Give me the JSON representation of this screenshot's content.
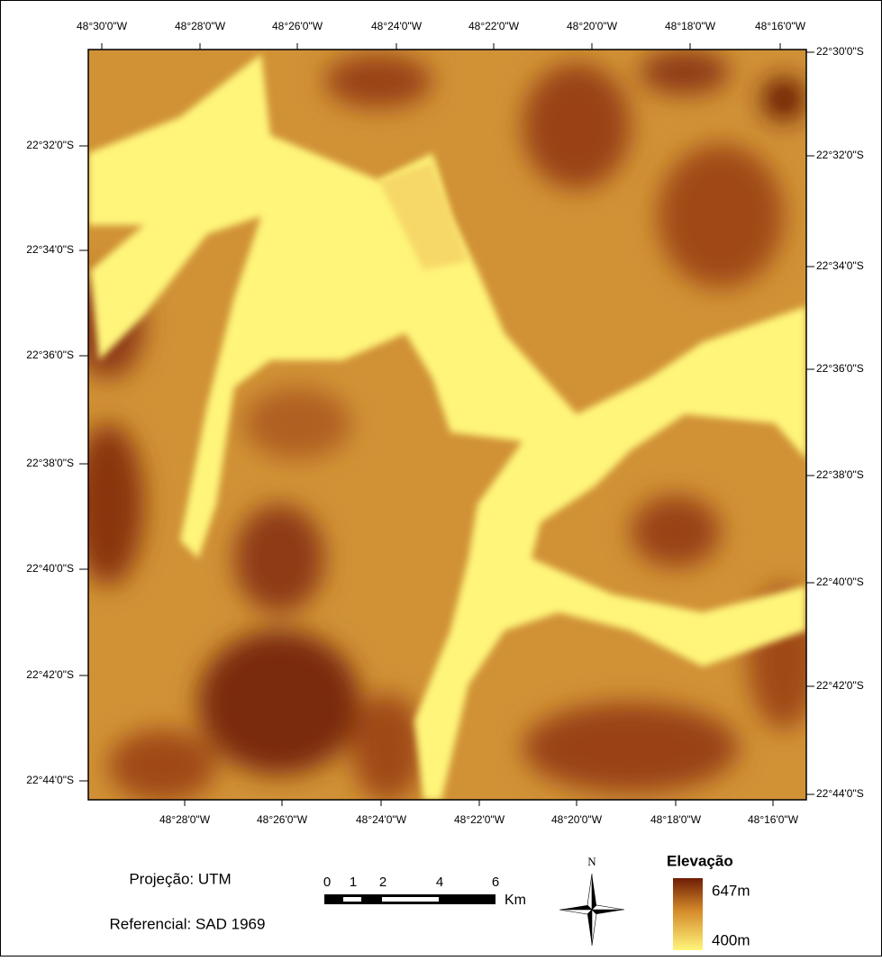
{
  "top_labels": [
    "48°30'0\"W",
    "48°28'0\"W",
    "48°26'0\"W",
    "48°24'0\"W",
    "48°22'0\"W",
    "48°20'0\"W",
    "48°18'0\"W",
    "48°16'0\"W"
  ],
  "bottom_labels": [
    "48°28'0\"W",
    "48°26'0\"W",
    "48°24'0\"W",
    "48°22'0\"W",
    "48°20'0\"W",
    "48°18'0\"W",
    "48°16'0\"W"
  ],
  "left_labels": [
    "22°32'0\"S",
    "22°34'0\"S",
    "22°36'0\"S",
    "22°38'0\"S",
    "22°40'0\"S",
    "22°42'0\"S",
    "22°44'0\"S"
  ],
  "right_labels": [
    "22°30'0\"S",
    "22°32'0\"S",
    "22°34'0\"S",
    "22°36'0\"S",
    "22°38'0\"S",
    "22°40'0\"S",
    "22°42'0\"S",
    "22°44'0\"S"
  ],
  "projection": "Projeção: UTM",
  "datum": "Referencial: SAD 1969",
  "scale": {
    "ticks": [
      "0",
      "1",
      "2",
      "4",
      "6"
    ],
    "unit": "Km"
  },
  "north": "N",
  "legend": {
    "title": "Elevação",
    "max": "647m",
    "min": "400m"
  }
}
